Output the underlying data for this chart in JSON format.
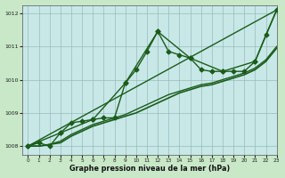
{
  "title": "Graphe pression niveau de la mer (hPa)",
  "background_color": "#c8e8c8",
  "plot_bg_color": "#c8e8e8",
  "grid_color": "#99bbbb",
  "line_color": "#1a5c1a",
  "xlim": [
    -0.5,
    23
  ],
  "ylim": [
    1007.75,
    1012.25
  ],
  "yticks": [
    1008,
    1009,
    1010,
    1011,
    1012
  ],
  "xticks": [
    0,
    1,
    2,
    3,
    4,
    5,
    6,
    7,
    8,
    9,
    10,
    11,
    12,
    13,
    14,
    15,
    16,
    17,
    18,
    19,
    20,
    21,
    22,
    23
  ],
  "series": [
    {
      "x": [
        0,
        1,
        2,
        3,
        4,
        5,
        6,
        7,
        8,
        9,
        10,
        11,
        12,
        13,
        14,
        15,
        16,
        17,
        18,
        19,
        20,
        21,
        22,
        23
      ],
      "y": [
        1008.0,
        1008.1,
        1008.0,
        1008.4,
        1008.7,
        1008.75,
        1008.8,
        1008.85,
        1008.85,
        1009.9,
        1010.3,
        1010.85,
        1011.45,
        1010.85,
        1010.75,
        1010.65,
        1010.3,
        1010.25,
        1010.25,
        1010.25,
        1010.25,
        1010.55,
        1011.35,
        1012.1
      ],
      "marker": "D",
      "markersize": 2.5,
      "linewidth": 1.0
    },
    {
      "x": [
        0,
        23
      ],
      "y": [
        1008.0,
        1012.1
      ],
      "marker": null,
      "linewidth": 1.0
    },
    {
      "x": [
        0,
        1,
        2,
        3,
        4,
        5,
        6,
        7,
        8,
        9,
        10,
        11,
        12,
        13,
        14,
        15,
        16,
        17,
        18,
        19,
        20,
        21,
        22,
        23
      ],
      "y": [
        1008.0,
        1008.0,
        1008.05,
        1008.1,
        1008.3,
        1008.45,
        1008.6,
        1008.7,
        1008.8,
        1008.9,
        1009.0,
        1009.15,
        1009.3,
        1009.45,
        1009.6,
        1009.7,
        1009.8,
        1009.85,
        1009.95,
        1010.05,
        1010.15,
        1010.3,
        1010.55,
        1010.95
      ],
      "marker": null,
      "linewidth": 1.2
    },
    {
      "x": [
        0,
        1,
        2,
        3,
        4,
        5,
        6,
        7,
        8,
        9,
        10,
        11,
        12,
        13,
        14,
        15,
        16,
        17,
        18,
        19,
        20,
        21,
        22,
        23
      ],
      "y": [
        1008.0,
        1008.0,
        1008.05,
        1008.15,
        1008.35,
        1008.5,
        1008.65,
        1008.75,
        1008.85,
        1008.95,
        1009.1,
        1009.25,
        1009.4,
        1009.55,
        1009.65,
        1009.75,
        1009.85,
        1009.9,
        1010.0,
        1010.1,
        1010.2,
        1010.35,
        1010.6,
        1011.0
      ],
      "marker": null,
      "linewidth": 1.0
    },
    {
      "x": [
        0,
        3,
        6,
        9,
        12,
        15,
        18,
        21,
        23
      ],
      "y": [
        1008.0,
        1008.4,
        1008.8,
        1009.9,
        1011.45,
        1010.65,
        1010.25,
        1010.55,
        1012.1
      ],
      "marker": "D",
      "markersize": 2.5,
      "linewidth": 1.0
    }
  ]
}
